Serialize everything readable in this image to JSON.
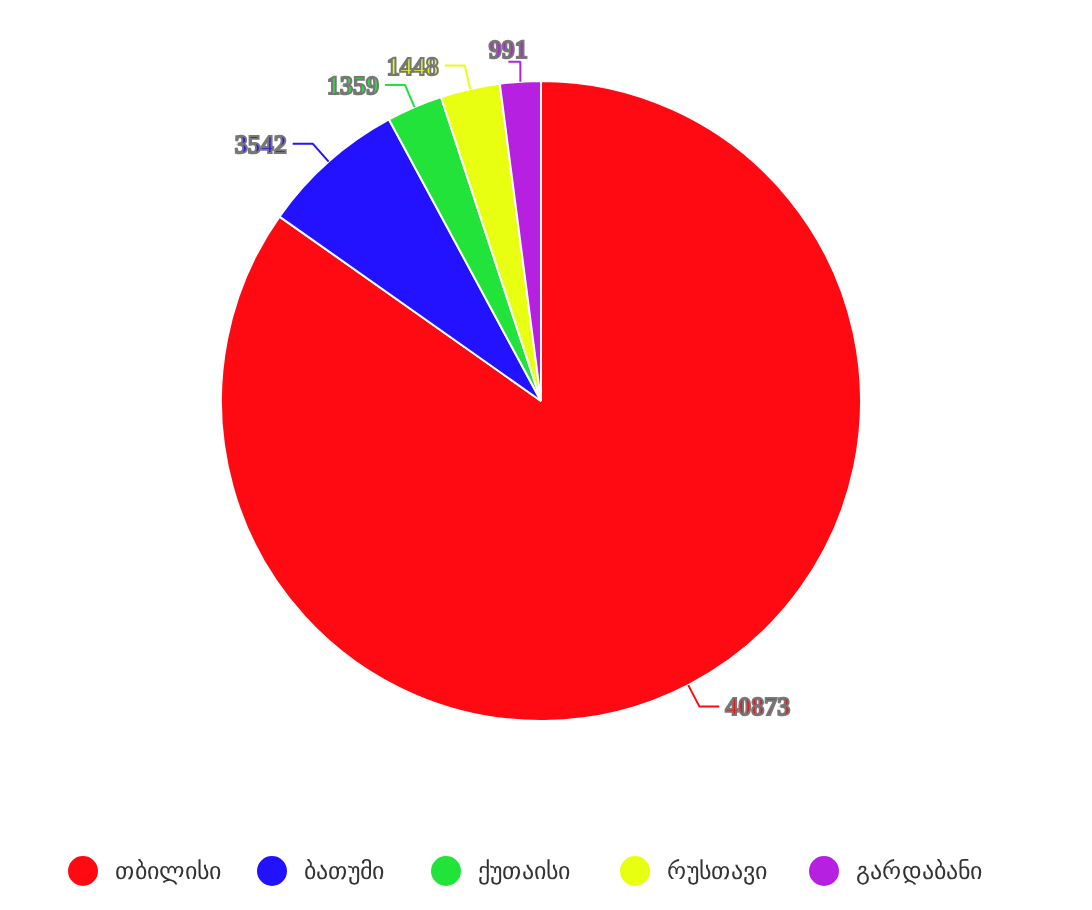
{
  "chart_data": {
    "type": "pie",
    "categories": [
      "თბილისი",
      "ბათუმი",
      "ქუთაისი",
      "რუსთავი",
      "გარდაბანი"
    ],
    "values": [
      40873,
      3542,
      1359,
      1448,
      991
    ],
    "colors": [
      "#ff0a12",
      "#2312ff",
      "#22e33a",
      "#e8ff12",
      "#b620e0"
    ],
    "data_labels": true,
    "legend": "bottom"
  }
}
